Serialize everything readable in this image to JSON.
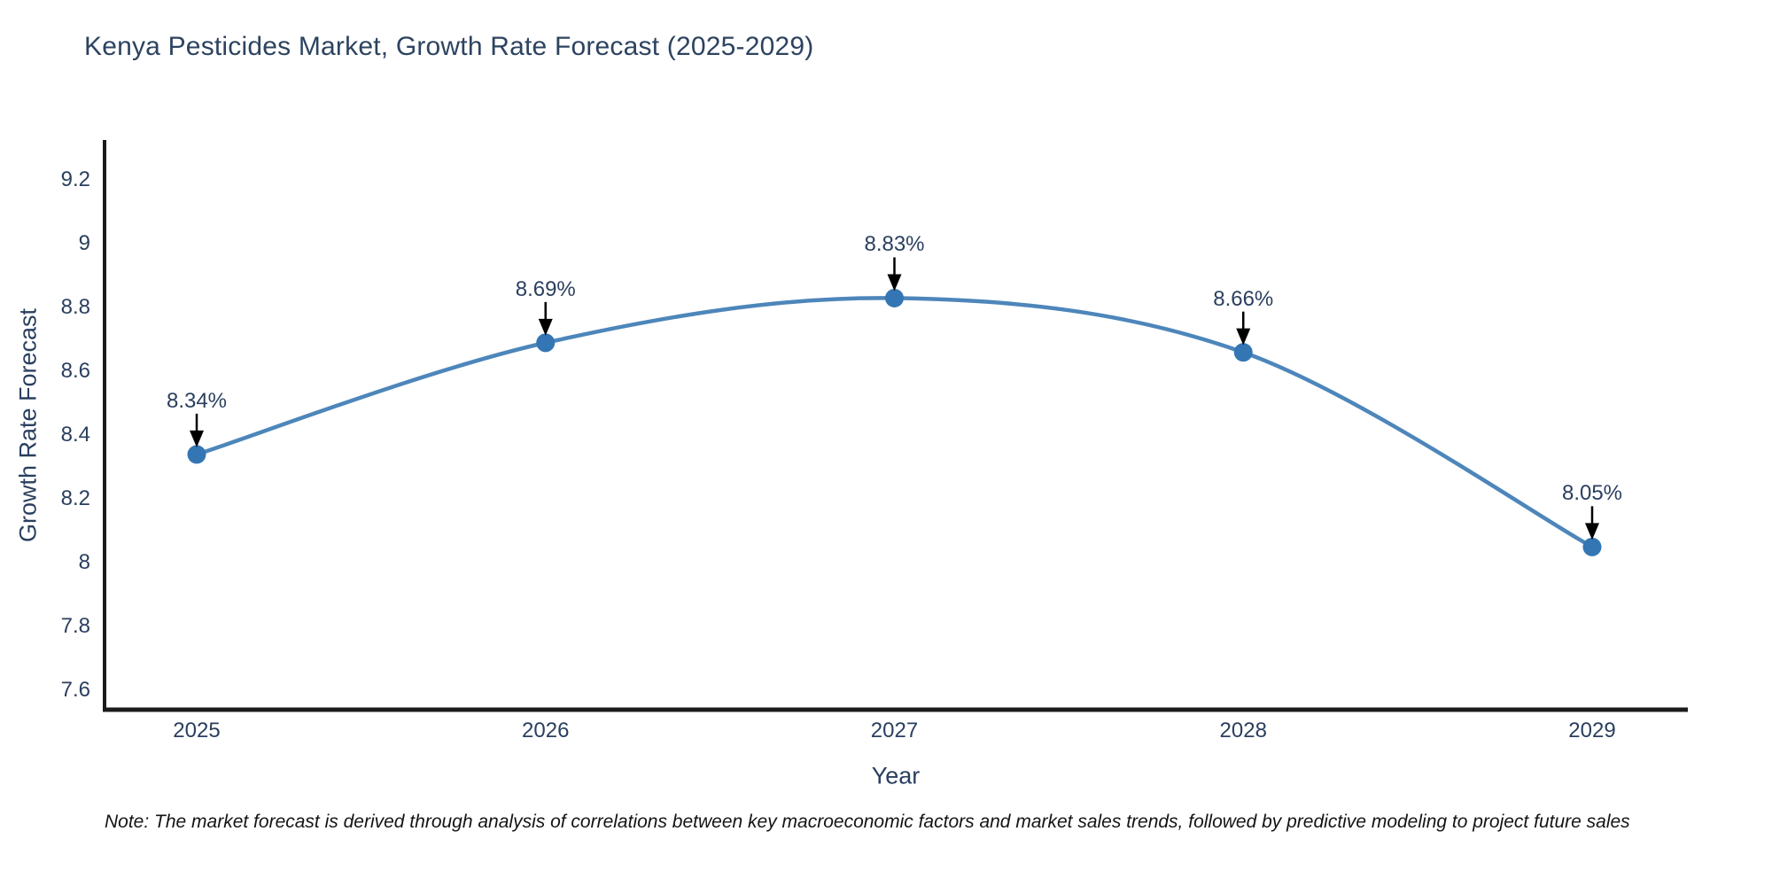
{
  "chart_data": {
    "type": "line",
    "title": "Kenya Pesticides Market, Growth Rate Forecast (2025-2029)",
    "xlabel": "Year",
    "ylabel": "Growth Rate Forecast",
    "categories": [
      "2025",
      "2026",
      "2027",
      "2028",
      "2029"
    ],
    "series": [
      {
        "name": "Growth Rate Forecast",
        "values": [
          8.34,
          8.69,
          8.83,
          8.66,
          8.05
        ]
      }
    ],
    "point_labels": [
      "8.34%",
      "8.69%",
      "8.83%",
      "8.66%",
      "8.05%"
    ],
    "y_tick_labels": [
      "7.6",
      "7.8",
      "8",
      "8.2",
      "8.4",
      "8.6",
      "8.8",
      "9",
      "9.2"
    ],
    "y_tick_values": [
      7.6,
      7.8,
      8.0,
      8.2,
      8.4,
      8.6,
      8.8,
      9.0,
      9.2
    ],
    "ylim": [
      7.54,
      9.32
    ],
    "grid": false,
    "legend_position": "none",
    "line_shape": "spline",
    "colors": {
      "line": "#4d86ba",
      "marker": "#3476b4",
      "axis": "#1b1b1b",
      "text": "#2a3f5f",
      "annotation_arrow": "#000000",
      "background": "#ffffff"
    }
  },
  "note": "Note: The market forecast is derived through analysis of correlations between key macroeconomic factors and market sales trends, followed by predictive modeling to project future sales"
}
